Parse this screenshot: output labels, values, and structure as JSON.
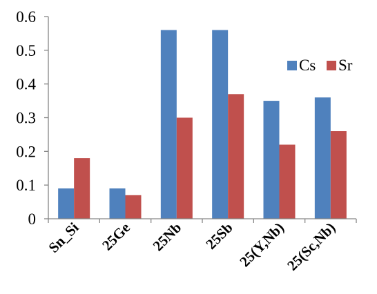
{
  "chart_data": {
    "type": "bar",
    "title": "",
    "xlabel": "",
    "ylabel": "",
    "categories": [
      "Sn_Si",
      "25Ge",
      "25Nb",
      "25Sb",
      "25(Y,Nb)",
      "25(Sc,Nb)"
    ],
    "series": [
      {
        "name": "Cs",
        "color": "#4F81BD",
        "values": [
          0.09,
          0.09,
          0.56,
          0.56,
          0.35,
          0.36
        ]
      },
      {
        "name": "Sr",
        "color": "#C0504D",
        "values": [
          0.18,
          0.07,
          0.3,
          0.37,
          0.22,
          0.26
        ]
      }
    ],
    "ylim": [
      0,
      0.6
    ],
    "yticks": [
      "0",
      "0.1",
      "0.2",
      "0.3",
      "0.4",
      "0.5",
      "0.6"
    ],
    "grid": false,
    "legend_position": "right"
  }
}
